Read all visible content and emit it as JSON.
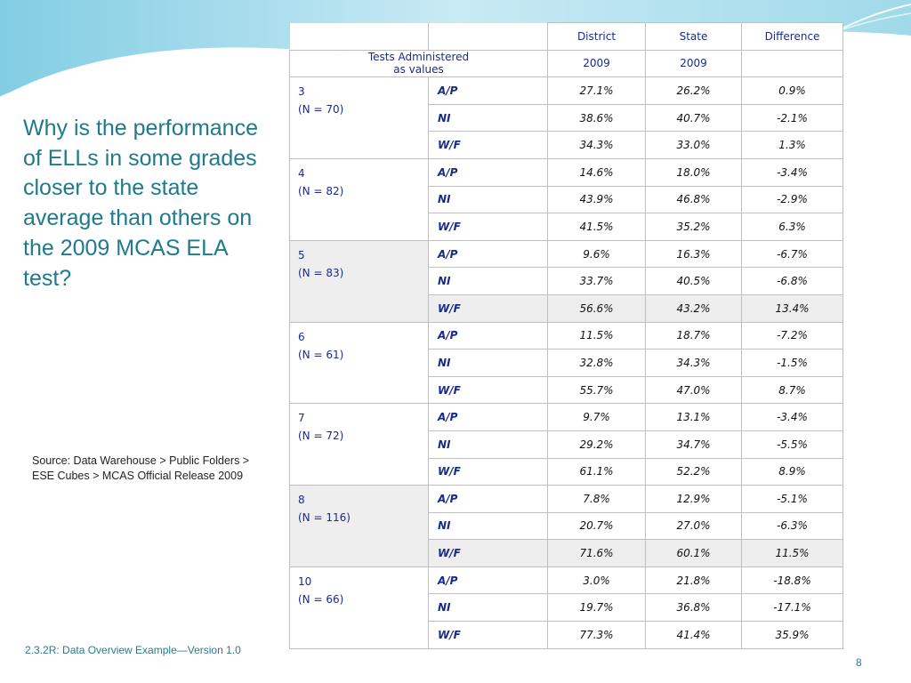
{
  "question": "Why is the performance of ELLs in some grades closer to the state average than others on the 2009 MCAS ELA test?",
  "source": "Source: Data Warehouse > Public Folders > ESE Cubes > MCAS Official Release 2009",
  "footer": "2.3.2R: Data Overview Example—Version 1.0",
  "page_number": "8",
  "table": {
    "headers": {
      "district": "District",
      "state": "State",
      "difference": "Difference"
    },
    "subheader": {
      "line1": "Tests Administered",
      "line2": "as values",
      "district_year": "2009",
      "state_year": "2009"
    },
    "grades": [
      {
        "grade": "3",
        "n": "(N = 70)",
        "rows": [
          {
            "cat": "A/P",
            "district": "27.1%",
            "state": "26.2%",
            "diff": "0.9%"
          },
          {
            "cat": "NI",
            "district": "38.6%",
            "state": "40.7%",
            "diff": "-2.1%"
          },
          {
            "cat": "W/F",
            "district": "34.3%",
            "state": "33.0%",
            "diff": "1.3%"
          }
        ]
      },
      {
        "grade": "4",
        "n": "(N = 82)",
        "rows": [
          {
            "cat": "A/P",
            "district": "14.6%",
            "state": "18.0%",
            "diff": "-3.4%"
          },
          {
            "cat": "NI",
            "district": "43.9%",
            "state": "46.8%",
            "diff": "-2.9%"
          },
          {
            "cat": "W/F",
            "district": "41.5%",
            "state": "35.2%",
            "diff": "6.3%"
          }
        ]
      },
      {
        "grade": "5",
        "n": "(N = 83)",
        "rows": [
          {
            "cat": "A/P",
            "district": "9.6%",
            "state": "16.3%",
            "diff": "-6.7%"
          },
          {
            "cat": "NI",
            "district": "33.7%",
            "state": "40.5%",
            "diff": "-6.8%"
          },
          {
            "cat": "W/F",
            "district": "56.6%",
            "state": "43.2%",
            "diff": "13.4%"
          }
        ]
      },
      {
        "grade": "6",
        "n": "(N = 61)",
        "rows": [
          {
            "cat": "A/P",
            "district": "11.5%",
            "state": "18.7%",
            "diff": "-7.2%"
          },
          {
            "cat": "NI",
            "district": "32.8%",
            "state": "34.3%",
            "diff": "-1.5%"
          },
          {
            "cat": "W/F",
            "district": "55.7%",
            "state": "47.0%",
            "diff": "8.7%"
          }
        ]
      },
      {
        "grade": "7",
        "n": "(N = 72)",
        "rows": [
          {
            "cat": "A/P",
            "district": "9.7%",
            "state": "13.1%",
            "diff": "-3.4%"
          },
          {
            "cat": "NI",
            "district": "29.2%",
            "state": "34.7%",
            "diff": "-5.5%"
          },
          {
            "cat": "W/F",
            "district": "61.1%",
            "state": "52.2%",
            "diff": "8.9%"
          }
        ]
      },
      {
        "grade": "8",
        "n": "(N = 116)",
        "rows": [
          {
            "cat": "A/P",
            "district": "7.8%",
            "state": "12.9%",
            "diff": "-5.1%"
          },
          {
            "cat": "NI",
            "district": "20.7%",
            "state": "27.0%",
            "diff": "-6.3%"
          },
          {
            "cat": "W/F",
            "district": "71.6%",
            "state": "60.1%",
            "diff": "11.5%"
          }
        ]
      },
      {
        "grade": "10",
        "n": "(N = 66)",
        "rows": [
          {
            "cat": "A/P",
            "district": "3.0%",
            "state": "21.8%",
            "diff": "-18.8%"
          },
          {
            "cat": "NI",
            "district": "19.7%",
            "state": "36.8%",
            "diff": "-17.1%"
          },
          {
            "cat": "W/F",
            "district": "77.3%",
            "state": "41.4%",
            "diff": "35.9%"
          }
        ]
      }
    ]
  },
  "colors": {
    "accent": "#1e7a8c",
    "header_text": "#1a2a8c",
    "shade": "#eeeeee",
    "wave": "#a8dcec"
  }
}
